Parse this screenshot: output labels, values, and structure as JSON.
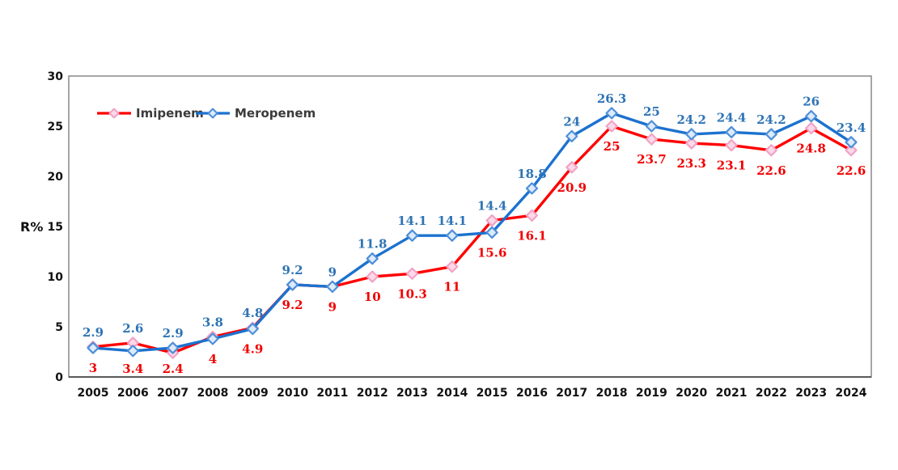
{
  "chart_data": {
    "type": "line",
    "title": "",
    "xlabel": "",
    "ylabel": "R%",
    "ylim": [
      0,
      30
    ],
    "y_ticks": [
      "0",
      "5",
      "10",
      "15",
      "20",
      "25",
      "30"
    ],
    "grid": false,
    "legend_position": "top-left-inside",
    "categories": [
      "2005",
      "2006",
      "2007",
      "2008",
      "2009",
      "2010",
      "2011",
      "2012",
      "2013",
      "2014",
      "2015",
      "2016",
      "2017",
      "2018",
      "2019",
      "2020",
      "2021",
      "2022",
      "2023",
      "2024"
    ],
    "series": [
      {
        "name": "Imipenem",
        "values": [
          3,
          3.4,
          2.4,
          4,
          4.9,
          9.2,
          9,
          10,
          10.3,
          11,
          15.6,
          16.1,
          20.9,
          25,
          23.7,
          23.3,
          23.1,
          22.6,
          24.8,
          22.6
        ],
        "line_color": "#FF0000",
        "marker_fill": "#FBD9E8",
        "marker_stroke": "#F2A2C6",
        "label_color": "#F20000",
        "label_position": "below"
      },
      {
        "name": "Meropenem",
        "values": [
          2.9,
          2.6,
          2.9,
          3.8,
          4.8,
          9.2,
          9,
          11.8,
          14.1,
          14.1,
          14.4,
          18.8,
          24,
          26.3,
          25,
          24.2,
          24.4,
          24.2,
          26,
          23.4
        ],
        "line_color": "#1C72CE",
        "marker_fill": "#DCEAFA",
        "marker_stroke": "#4E8FD9",
        "label_color": "#2E74B5",
        "label_position": "above"
      }
    ],
    "plot_border_color": "#808080",
    "axis_line_color": "#595959"
  }
}
